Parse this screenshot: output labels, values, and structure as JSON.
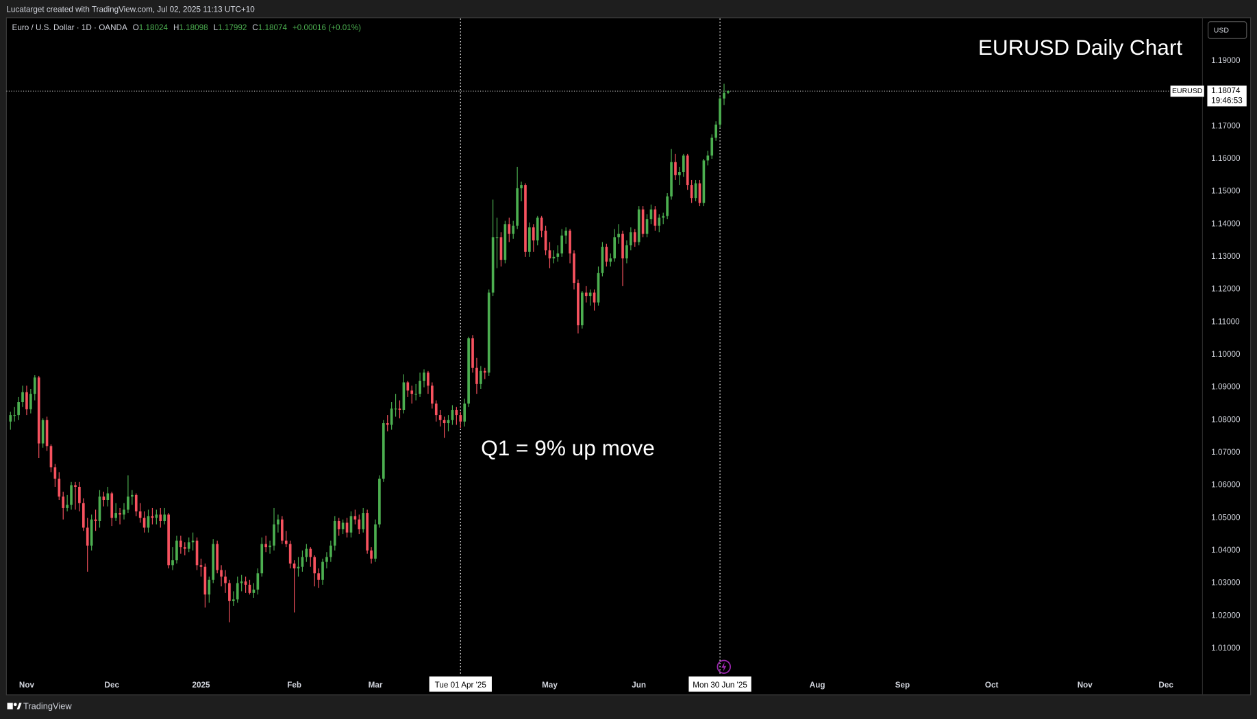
{
  "attribution": "Lucatarget created with TradingView.com, Jul 02, 2025 11:13 UTC+10",
  "brand": "TradingView",
  "chart_data": {
    "type": "candlestick",
    "title": "EURUSD Daily Chart",
    "annotation": "Q1 = 9% up move",
    "currency": "USD",
    "legend": {
      "name": "Euro / U.S. Dollar · 1D · OANDA",
      "o_label": "O",
      "o": 1.18024,
      "h_label": "H",
      "h": 1.18098,
      "l_label": "L",
      "l": 1.17992,
      "c_label": "C",
      "c": 1.18074,
      "change": "+0.00016 (+0.01%)"
    },
    "symbol": "EURUSD",
    "last_price": 1.18074,
    "countdown": "19:46:53",
    "up_color": "#4caf50",
    "down_color": "#f7525f",
    "xlim": [
      -1,
      294
    ],
    "xticks": [
      {
        "value": 4,
        "label": "Nov"
      },
      {
        "value": 25,
        "label": "Dec"
      },
      {
        "value": 47,
        "label": "2025"
      },
      {
        "value": 70,
        "label": "Feb"
      },
      {
        "value": 90,
        "label": "Mar"
      },
      {
        "value": 133,
        "label": "May"
      },
      {
        "value": 155,
        "label": "Jun"
      },
      {
        "value": 199,
        "label": "Aug"
      },
      {
        "value": 220,
        "label": "Sep"
      },
      {
        "value": 242,
        "label": "Oct"
      },
      {
        "value": 265,
        "label": "Nov"
      },
      {
        "value": 285,
        "label": "Dec"
      }
    ],
    "markers": [
      {
        "x": 111,
        "label": "Tue 01 Apr '25"
      },
      {
        "x": 175,
        "label": "Mon 30 Jun '25"
      }
    ],
    "ylim": [
      0.996,
      1.203
    ],
    "yticks": [
      {
        "value": 1.01,
        "label": "1.01000"
      },
      {
        "value": 1.02,
        "label": "1.02000"
      },
      {
        "value": 1.03,
        "label": "1.03000"
      },
      {
        "value": 1.04,
        "label": "1.04000"
      },
      {
        "value": 1.05,
        "label": "1.05000"
      },
      {
        "value": 1.06,
        "label": "1.06000"
      },
      {
        "value": 1.07,
        "label": "1.07000"
      },
      {
        "value": 1.08,
        "label": "1.08000"
      },
      {
        "value": 1.09,
        "label": "1.09000"
      },
      {
        "value": 1.1,
        "label": "1.10000"
      },
      {
        "value": 1.11,
        "label": "1.11000"
      },
      {
        "value": 1.12,
        "label": "1.12000"
      },
      {
        "value": 1.13,
        "label": "1.13000"
      },
      {
        "value": 1.14,
        "label": "1.14000"
      },
      {
        "value": 1.15,
        "label": "1.15000"
      },
      {
        "value": 1.16,
        "label": "1.16000"
      },
      {
        "value": 1.17,
        "label": "1.17000"
      },
      {
        "value": 1.19,
        "label": "1.19000"
      }
    ],
    "candles": [
      [
        1.0795,
        1.0825,
        1.077,
        1.0815
      ],
      [
        1.0815,
        1.084,
        1.0795,
        1.0815
      ],
      [
        1.0815,
        1.087,
        1.08,
        1.0855
      ],
      [
        1.0855,
        1.0905,
        1.084,
        1.0885
      ],
      [
        1.0885,
        1.0905,
        1.0815,
        1.0833
      ],
      [
        1.0833,
        1.0895,
        1.082,
        1.088
      ],
      [
        1.088,
        1.0937,
        1.086,
        1.093
      ],
      [
        1.093,
        1.0935,
        1.0683,
        1.0728
      ],
      [
        1.0728,
        1.0805,
        1.0715,
        1.08
      ],
      [
        1.08,
        1.081,
        1.0705,
        1.072
      ],
      [
        1.072,
        1.0725,
        1.064,
        1.0655
      ],
      [
        1.0655,
        1.0665,
        1.0595,
        1.062
      ],
      [
        1.062,
        1.064,
        1.0555,
        1.0565
      ],
      [
        1.0565,
        1.058,
        1.0495,
        1.053
      ],
      [
        1.053,
        1.057,
        1.052,
        1.054
      ],
      [
        1.054,
        1.061,
        1.0525,
        1.06
      ],
      [
        1.06,
        1.061,
        1.0525,
        1.0595
      ],
      [
        1.0595,
        1.061,
        1.052,
        1.0545
      ],
      [
        1.0545,
        1.056,
        1.046,
        1.047
      ],
      [
        1.047,
        1.05,
        1.0335,
        1.0415
      ],
      [
        1.0415,
        1.051,
        1.04,
        1.0495
      ],
      [
        1.0495,
        1.0525,
        1.046,
        1.049
      ],
      [
        1.049,
        1.0585,
        1.047,
        1.0565
      ],
      [
        1.0565,
        1.058,
        1.0535,
        1.0555
      ],
      [
        1.0555,
        1.0595,
        1.0535,
        1.0575
      ],
      [
        1.0575,
        1.058,
        1.0475,
        1.05
      ],
      [
        1.05,
        1.0545,
        1.049,
        1.0515
      ],
      [
        1.0515,
        1.053,
        1.048,
        1.051
      ],
      [
        1.051,
        1.0545,
        1.0495,
        1.0525
      ],
      [
        1.0525,
        1.063,
        1.0515,
        1.0565
      ],
      [
        1.0565,
        1.0585,
        1.054,
        1.057
      ],
      [
        1.057,
        1.0575,
        1.0505,
        1.052
      ],
      [
        1.052,
        1.0545,
        1.0485,
        1.05
      ],
      [
        1.05,
        1.052,
        1.0455,
        1.047
      ],
      [
        1.047,
        1.0525,
        1.0455,
        1.0505
      ],
      [
        1.0505,
        1.053,
        1.048,
        1.05
      ],
      [
        1.05,
        1.0525,
        1.048,
        1.051
      ],
      [
        1.051,
        1.053,
        1.047,
        1.049
      ],
      [
        1.049,
        1.053,
        1.048,
        1.051
      ],
      [
        1.051,
        1.0515,
        1.0345,
        1.0355
      ],
      [
        1.0355,
        1.041,
        1.034,
        1.037
      ],
      [
        1.037,
        1.0445,
        1.036,
        1.043
      ],
      [
        1.043,
        1.0445,
        1.039,
        1.041
      ],
      [
        1.041,
        1.0425,
        1.0385,
        1.0405
      ],
      [
        1.0405,
        1.044,
        1.0395,
        1.0425
      ],
      [
        1.0425,
        1.0455,
        1.04,
        1.043
      ],
      [
        1.043,
        1.044,
        1.034,
        1.0355
      ],
      [
        1.0355,
        1.0375,
        1.032,
        1.035
      ],
      [
        1.035,
        1.036,
        1.0225,
        1.0265
      ],
      [
        1.0265,
        1.032,
        1.024,
        1.031
      ],
      [
        1.031,
        1.0435,
        1.03,
        1.042
      ],
      [
        1.042,
        1.043,
        1.033,
        1.034
      ],
      [
        1.034,
        1.0355,
        1.029,
        1.032
      ],
      [
        1.032,
        1.034,
        1.027,
        1.03
      ],
      [
        1.03,
        1.031,
        1.018,
        1.0245
      ],
      [
        1.0245,
        1.0275,
        1.023,
        1.025
      ],
      [
        1.025,
        1.032,
        1.024,
        1.03
      ],
      [
        1.03,
        1.0325,
        1.0275,
        1.0305
      ],
      [
        1.0305,
        1.032,
        1.027,
        1.0295
      ],
      [
        1.0295,
        1.031,
        1.0265,
        1.027
      ],
      [
        1.027,
        1.03,
        1.0255,
        1.028
      ],
      [
        1.028,
        1.0345,
        1.0265,
        1.033
      ],
      [
        1.033,
        1.044,
        1.032,
        1.042
      ],
      [
        1.042,
        1.0445,
        1.0395,
        1.041
      ],
      [
        1.041,
        1.043,
        1.039,
        1.0415
      ],
      [
        1.0415,
        1.053,
        1.04,
        1.048
      ],
      [
        1.048,
        1.051,
        1.0455,
        1.0495
      ],
      [
        1.0495,
        1.0505,
        1.042,
        1.043
      ],
      [
        1.043,
        1.046,
        1.041,
        1.042
      ],
      [
        1.042,
        1.043,
        1.0345,
        1.036
      ],
      [
        1.036,
        1.037,
        1.021,
        1.0345
      ],
      [
        1.0345,
        1.038,
        1.032,
        1.035
      ],
      [
        1.035,
        1.04,
        1.0335,
        1.038
      ],
      [
        1.038,
        1.042,
        1.0365,
        1.0405
      ],
      [
        1.0405,
        1.041,
        1.035,
        1.038
      ],
      [
        1.038,
        1.0385,
        1.029,
        1.033
      ],
      [
        1.033,
        1.0345,
        1.0285,
        1.031
      ],
      [
        1.031,
        1.0375,
        1.0295,
        1.0365
      ],
      [
        1.0365,
        1.0395,
        1.0345,
        1.038
      ],
      [
        1.038,
        1.043,
        1.0365,
        1.0415
      ],
      [
        1.0415,
        1.0505,
        1.04,
        1.049
      ],
      [
        1.049,
        1.05,
        1.0445,
        1.0465
      ],
      [
        1.0465,
        1.0495,
        1.045,
        1.0485
      ],
      [
        1.0485,
        1.05,
        1.044,
        1.0455
      ],
      [
        1.0455,
        1.052,
        1.044,
        1.0505
      ],
      [
        1.0505,
        1.0525,
        1.048,
        1.0495
      ],
      [
        1.0495,
        1.051,
        1.045,
        1.0465
      ],
      [
        1.0465,
        1.053,
        1.0455,
        1.0515
      ],
      [
        1.0515,
        1.0525,
        1.039,
        1.04
      ],
      [
        1.04,
        1.041,
        1.036,
        1.0375
      ],
      [
        1.0375,
        1.0495,
        1.0365,
        1.048
      ],
      [
        1.048,
        1.063,
        1.047,
        1.062
      ],
      [
        1.062,
        1.08,
        1.061,
        1.079
      ],
      [
        1.079,
        1.0815,
        1.0765,
        1.0785
      ],
      [
        1.0785,
        1.0855,
        1.077,
        1.0835
      ],
      [
        1.0835,
        1.088,
        1.081,
        1.0835
      ],
      [
        1.0835,
        1.086,
        1.0805,
        1.083
      ],
      [
        1.083,
        1.094,
        1.082,
        1.0915
      ],
      [
        1.0915,
        1.092,
        1.087,
        1.089
      ],
      [
        1.089,
        1.0905,
        1.085,
        1.088
      ],
      [
        1.088,
        1.091,
        1.086,
        1.088
      ],
      [
        1.088,
        1.0945,
        1.087,
        1.092
      ],
      [
        1.092,
        1.0955,
        1.09,
        1.0945
      ],
      [
        1.0945,
        1.095,
        1.088,
        1.0905
      ],
      [
        1.0905,
        1.0915,
        1.0835,
        1.085
      ],
      [
        1.085,
        1.086,
        1.0795,
        1.0815
      ],
      [
        1.0815,
        1.083,
        1.078,
        1.08
      ],
      [
        1.08,
        1.081,
        1.0745,
        1.079
      ],
      [
        1.079,
        1.0815,
        1.0765,
        1.08
      ],
      [
        1.08,
        1.0845,
        1.0785,
        1.083
      ],
      [
        1.083,
        1.084,
        1.0785,
        1.0815
      ],
      [
        1.0815,
        1.0825,
        1.0775,
        1.0795
      ],
      [
        1.0795,
        1.0865,
        1.078,
        1.085
      ],
      [
        1.085,
        1.1055,
        1.084,
        1.105
      ],
      [
        1.105,
        1.106,
        1.0945,
        1.096
      ],
      [
        1.096,
        1.099,
        1.088,
        1.091
      ],
      [
        1.091,
        1.0965,
        1.0895,
        1.095
      ],
      [
        1.095,
        1.096,
        1.0925,
        1.0945
      ],
      [
        1.0945,
        1.12,
        1.0935,
        1.119
      ],
      [
        1.119,
        1.1475,
        1.118,
        1.136
      ],
      [
        1.136,
        1.142,
        1.1265,
        1.136
      ],
      [
        1.136,
        1.1375,
        1.127,
        1.129
      ],
      [
        1.129,
        1.141,
        1.128,
        1.14
      ],
      [
        1.14,
        1.142,
        1.1345,
        1.137
      ],
      [
        1.137,
        1.141,
        1.1355,
        1.1395
      ],
      [
        1.1395,
        1.1575,
        1.1385,
        1.151
      ],
      [
        1.151,
        1.153,
        1.147,
        1.152
      ],
      [
        1.152,
        1.1525,
        1.13,
        1.1315
      ],
      [
        1.1315,
        1.1405,
        1.13,
        1.139
      ],
      [
        1.139,
        1.14,
        1.1315,
        1.135
      ],
      [
        1.135,
        1.1425,
        1.1335,
        1.142
      ],
      [
        1.142,
        1.1425,
        1.136,
        1.138
      ],
      [
        1.138,
        1.1395,
        1.1305,
        1.132
      ],
      [
        1.132,
        1.1345,
        1.1265,
        1.1295
      ],
      [
        1.1295,
        1.132,
        1.128,
        1.13
      ],
      [
        1.13,
        1.1335,
        1.1285,
        1.131
      ],
      [
        1.131,
        1.1385,
        1.13,
        1.1365
      ],
      [
        1.1365,
        1.139,
        1.134,
        1.138
      ],
      [
        1.138,
        1.1385,
        1.128,
        1.131
      ],
      [
        1.131,
        1.132,
        1.12,
        1.122
      ],
      [
        1.122,
        1.123,
        1.1065,
        1.109
      ],
      [
        1.109,
        1.1195,
        1.108,
        1.119
      ],
      [
        1.119,
        1.121,
        1.116,
        1.118
      ],
      [
        1.118,
        1.12,
        1.115,
        1.119
      ],
      [
        1.119,
        1.12,
        1.1135,
        1.116
      ],
      [
        1.116,
        1.127,
        1.115,
        1.125
      ],
      [
        1.125,
        1.1345,
        1.124,
        1.133
      ],
      [
        1.133,
        1.134,
        1.127,
        1.1285
      ],
      [
        1.1285,
        1.131,
        1.127,
        1.1295
      ],
      [
        1.1295,
        1.1385,
        1.1285,
        1.136
      ],
      [
        1.136,
        1.14,
        1.134,
        1.137
      ],
      [
        1.137,
        1.138,
        1.121,
        1.1295
      ],
      [
        1.1295,
        1.135,
        1.128,
        1.1335
      ],
      [
        1.1335,
        1.139,
        1.132,
        1.1375
      ],
      [
        1.1375,
        1.1385,
        1.133,
        1.1345
      ],
      [
        1.1345,
        1.1455,
        1.1335,
        1.1445
      ],
      [
        1.1445,
        1.1455,
        1.136,
        1.137
      ],
      [
        1.137,
        1.143,
        1.136,
        1.1415
      ],
      [
        1.1415,
        1.146,
        1.14,
        1.1445
      ],
      [
        1.1445,
        1.1455,
        1.138,
        1.1395
      ],
      [
        1.1395,
        1.143,
        1.1375,
        1.142
      ],
      [
        1.142,
        1.1435,
        1.14,
        1.1425
      ],
      [
        1.1425,
        1.1495,
        1.1415,
        1.1485
      ],
      [
        1.1485,
        1.163,
        1.1475,
        1.159
      ],
      [
        1.159,
        1.1615,
        1.1535,
        1.155
      ],
      [
        1.155,
        1.1575,
        1.152,
        1.156
      ],
      [
        1.156,
        1.1615,
        1.1545,
        1.161
      ],
      [
        1.161,
        1.1615,
        1.1505,
        1.152
      ],
      [
        1.152,
        1.1535,
        1.1465,
        1.148
      ],
      [
        1.148,
        1.1535,
        1.147,
        1.1525
      ],
      [
        1.1525,
        1.1535,
        1.1455,
        1.1465
      ],
      [
        1.1465,
        1.16,
        1.1455,
        1.1595
      ],
      [
        1.1595,
        1.1625,
        1.158,
        1.161
      ],
      [
        1.161,
        1.1675,
        1.16,
        1.1665
      ],
      [
        1.1665,
        1.1715,
        1.1655,
        1.1705
      ],
      [
        1.1705,
        1.179,
        1.1695,
        1.1785
      ],
      [
        1.1785,
        1.183,
        1.1765,
        1.1802
      ],
      [
        1.18024,
        1.18098,
        1.17992,
        1.18074
      ]
    ]
  }
}
